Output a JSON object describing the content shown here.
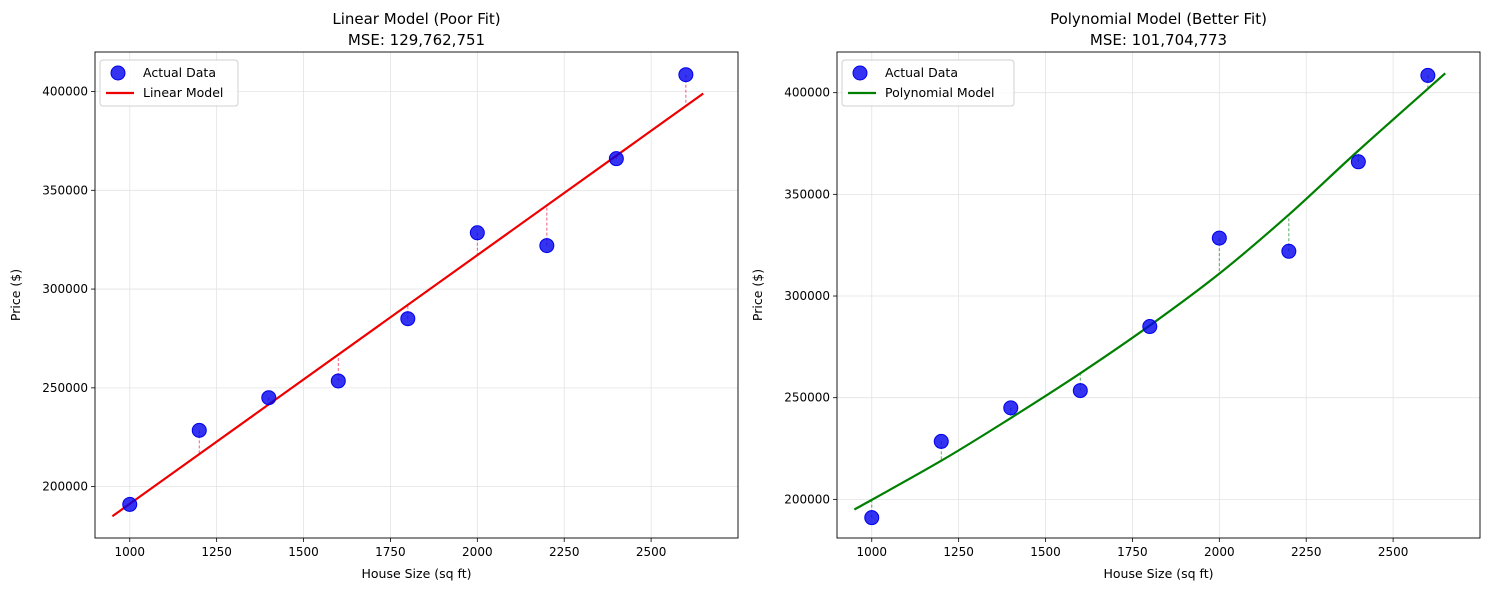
{
  "chart_data": [
    {
      "type": "scatter",
      "title": "Linear Model (Poor Fit)",
      "subtitle": "MSE: 129,762,751",
      "xlabel": "House Size (sq ft)",
      "ylabel": "Price ($)",
      "xlim": [
        900,
        2750
      ],
      "ylim": [
        174000,
        420000
      ],
      "xticks": [
        1000,
        1250,
        1500,
        1750,
        2000,
        2250,
        2500
      ],
      "yticks": [
        200000,
        250000,
        300000,
        350000,
        400000
      ],
      "grid": true,
      "legend_position": "top-left",
      "series": [
        {
          "name": "Actual Data",
          "kind": "scatter",
          "color": "#0000ee",
          "x": [
            1000,
            1200,
            1400,
            1600,
            1800,
            2000,
            2200,
            2400,
            2600
          ],
          "y": [
            191000,
            228500,
            245000,
            253500,
            285000,
            328500,
            322000,
            366000,
            408500
          ]
        },
        {
          "name": "Linear Model",
          "kind": "line",
          "color": "#ee0000",
          "x": [
            950,
            2650
          ],
          "y": [
            185000,
            399000
          ]
        }
      ],
      "residual_color": "#e8436b"
    },
    {
      "type": "scatter",
      "title": "Polynomial Model (Better Fit)",
      "subtitle": "MSE: 101,704,773",
      "xlabel": "House Size (sq ft)",
      "ylabel": "Price ($)",
      "xlim": [
        900,
        2750
      ],
      "ylim": [
        181000,
        420000
      ],
      "xticks": [
        1000,
        1250,
        1500,
        1750,
        2000,
        2250,
        2500
      ],
      "yticks": [
        200000,
        250000,
        300000,
        350000,
        400000
      ],
      "grid": true,
      "legend_position": "top-left",
      "series": [
        {
          "name": "Actual Data",
          "kind": "scatter",
          "color": "#0000ee",
          "x": [
            1000,
            1200,
            1400,
            1600,
            1800,
            2000,
            2200,
            2400,
            2600
          ],
          "y": [
            191000,
            228500,
            245000,
            253500,
            285000,
            328500,
            322000,
            366000,
            408500
          ]
        },
        {
          "name": "Polynomial Model",
          "kind": "line",
          "color": "#008000",
          "x": [
            950,
            1200,
            1400,
            1600,
            1800,
            2000,
            2200,
            2400,
            2650
          ],
          "y": [
            195000,
            219000,
            240000,
            262000,
            285500,
            311000,
            340000,
            371500,
            409500
          ]
        }
      ],
      "residual_color": "#3a9a4a"
    }
  ]
}
